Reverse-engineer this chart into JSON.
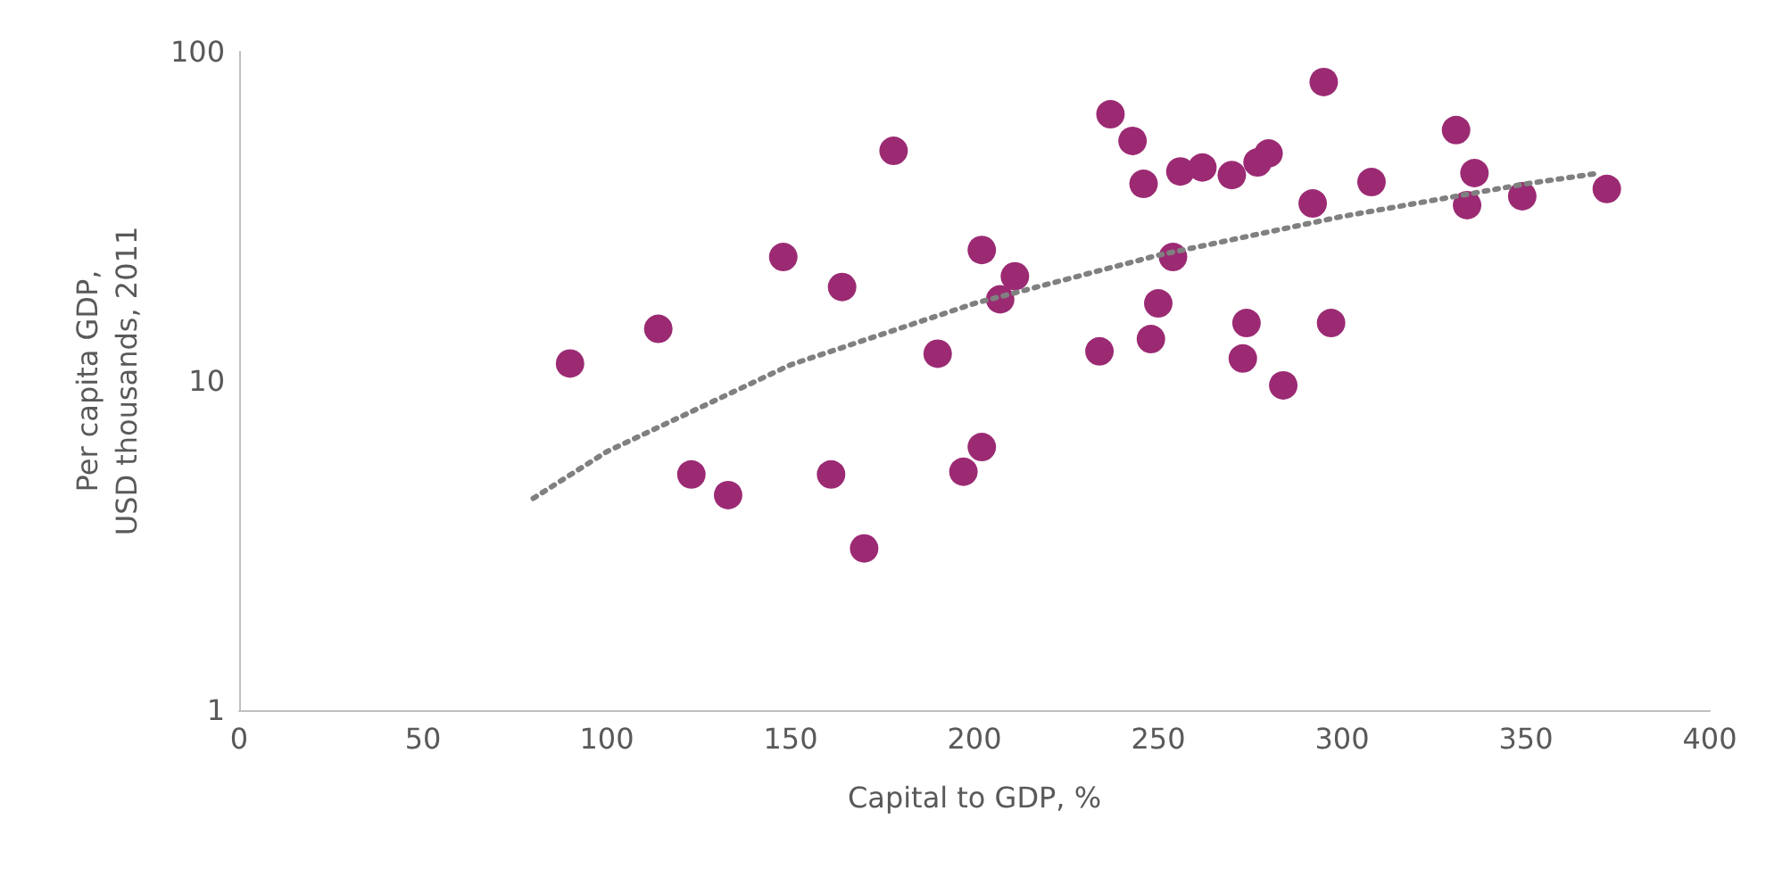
{
  "chart_data": {
    "type": "scatter",
    "xlabel": "Capital to GDP, %",
    "ylabel": "Per capita GDP,\nUSD thousands, 2011",
    "xlim": [
      0,
      400
    ],
    "xticks": [
      0,
      50,
      100,
      150,
      200,
      250,
      300,
      350,
      400
    ],
    "ylim": [
      1,
      100
    ],
    "yticks": [
      1,
      10,
      100
    ],
    "log": "y",
    "grid": false,
    "marker": "circle",
    "series": [
      {
        "color": "#9b2a73",
        "x": [
          90,
          114,
          123,
          133,
          148,
          161,
          164,
          170,
          178,
          190,
          197,
          202,
          202,
          207,
          211,
          234,
          237,
          243,
          246,
          248,
          250,
          254,
          256,
          262,
          270,
          273,
          274,
          277,
          280,
          284,
          292,
          295,
          297,
          308,
          331,
          336,
          334,
          349,
          372
        ],
        "values": [
          11.3,
          14.4,
          5.2,
          4.5,
          23.8,
          5.2,
          19.3,
          3.1,
          50,
          12.1,
          5.3,
          6.3,
          25,
          17.7,
          20.8,
          12.3,
          64.6,
          53.6,
          39.7,
          13.4,
          17.2,
          23.8,
          43.3,
          44.5,
          42.2,
          11.7,
          15,
          46.1,
          49.1,
          9.7,
          34.6,
          80.9,
          15,
          40.2,
          57.8,
          42.8,
          34.2,
          36.4,
          38.3
        ]
      },
      {
        "type": "line",
        "color": "#808080",
        "line_style": "dotted",
        "marker": "none",
        "x": [
          80,
          100,
          150,
          200,
          250,
          300,
          350,
          370
        ],
        "values": [
          4.4,
          6.1,
          11.2,
          17.2,
          24.1,
          31.6,
          39.7,
          42.8
        ]
      }
    ]
  }
}
